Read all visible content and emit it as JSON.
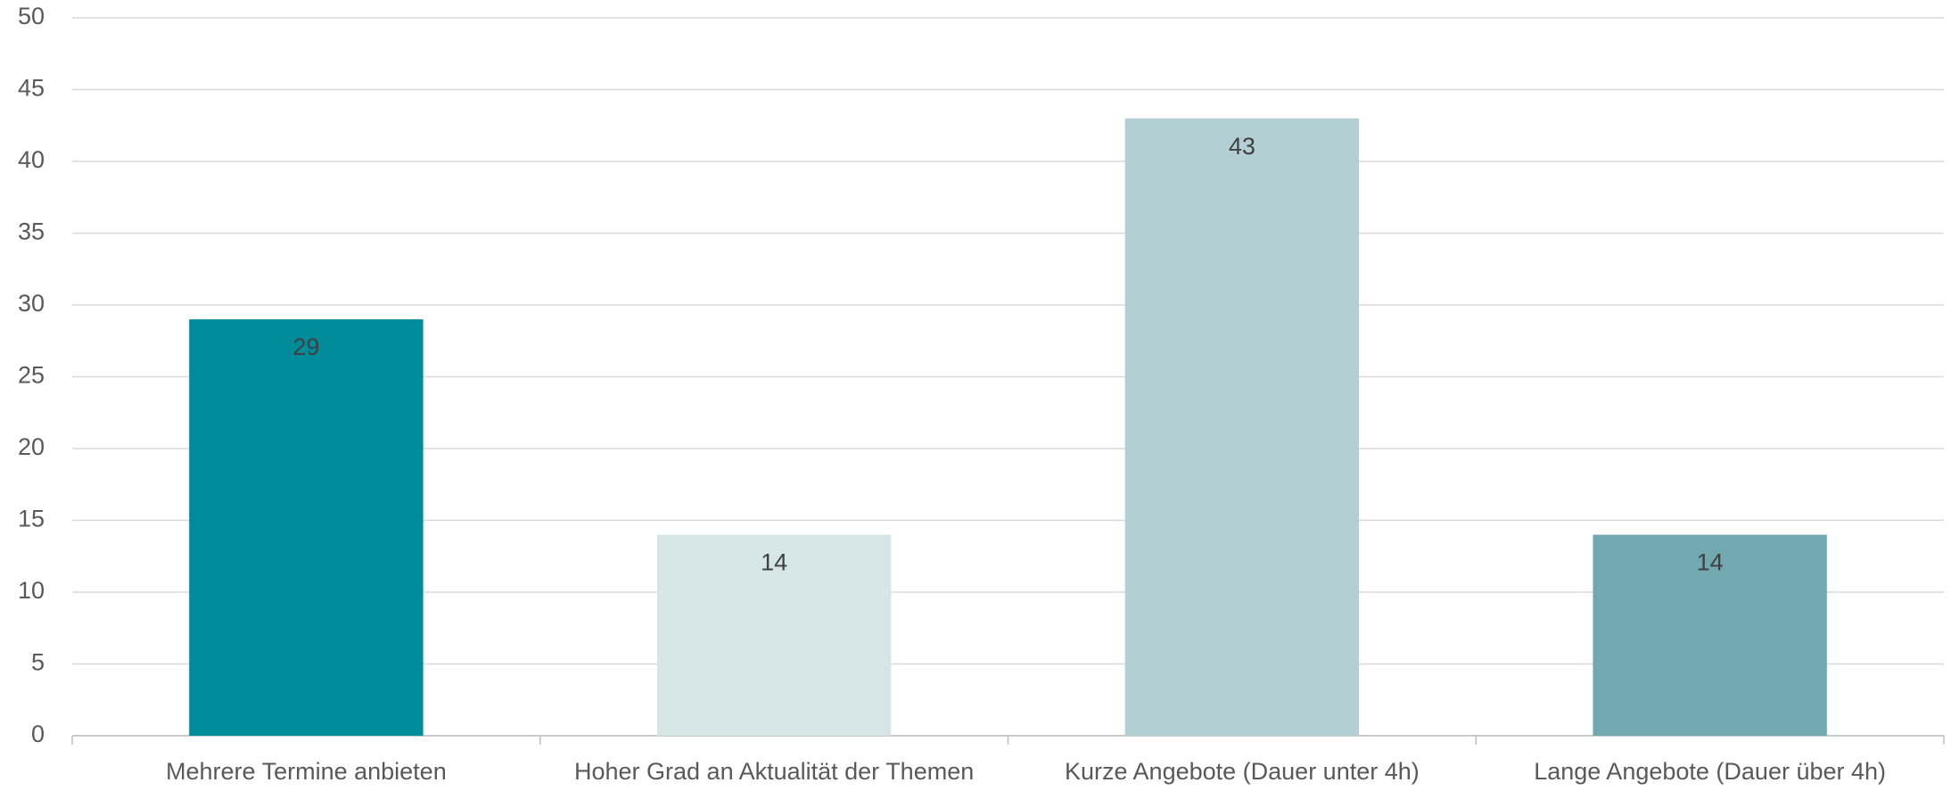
{
  "chart_data": {
    "type": "bar",
    "categories": [
      "Mehrere Termine anbieten",
      "Hoher Grad an Aktualität der Themen",
      "Kurze Angebote (Dauer unter 4h)",
      "Lange Angebote (Dauer über 4h)"
    ],
    "values": [
      29,
      14,
      43,
      14
    ],
    "colors": [
      "#008b9a",
      "#d6e6e7",
      "#b4cfd3",
      "#72a9b1"
    ],
    "ylim": [
      0,
      50
    ],
    "yticks": [
      0,
      5,
      10,
      15,
      20,
      25,
      30,
      35,
      40,
      45,
      50
    ],
    "grid": true
  }
}
